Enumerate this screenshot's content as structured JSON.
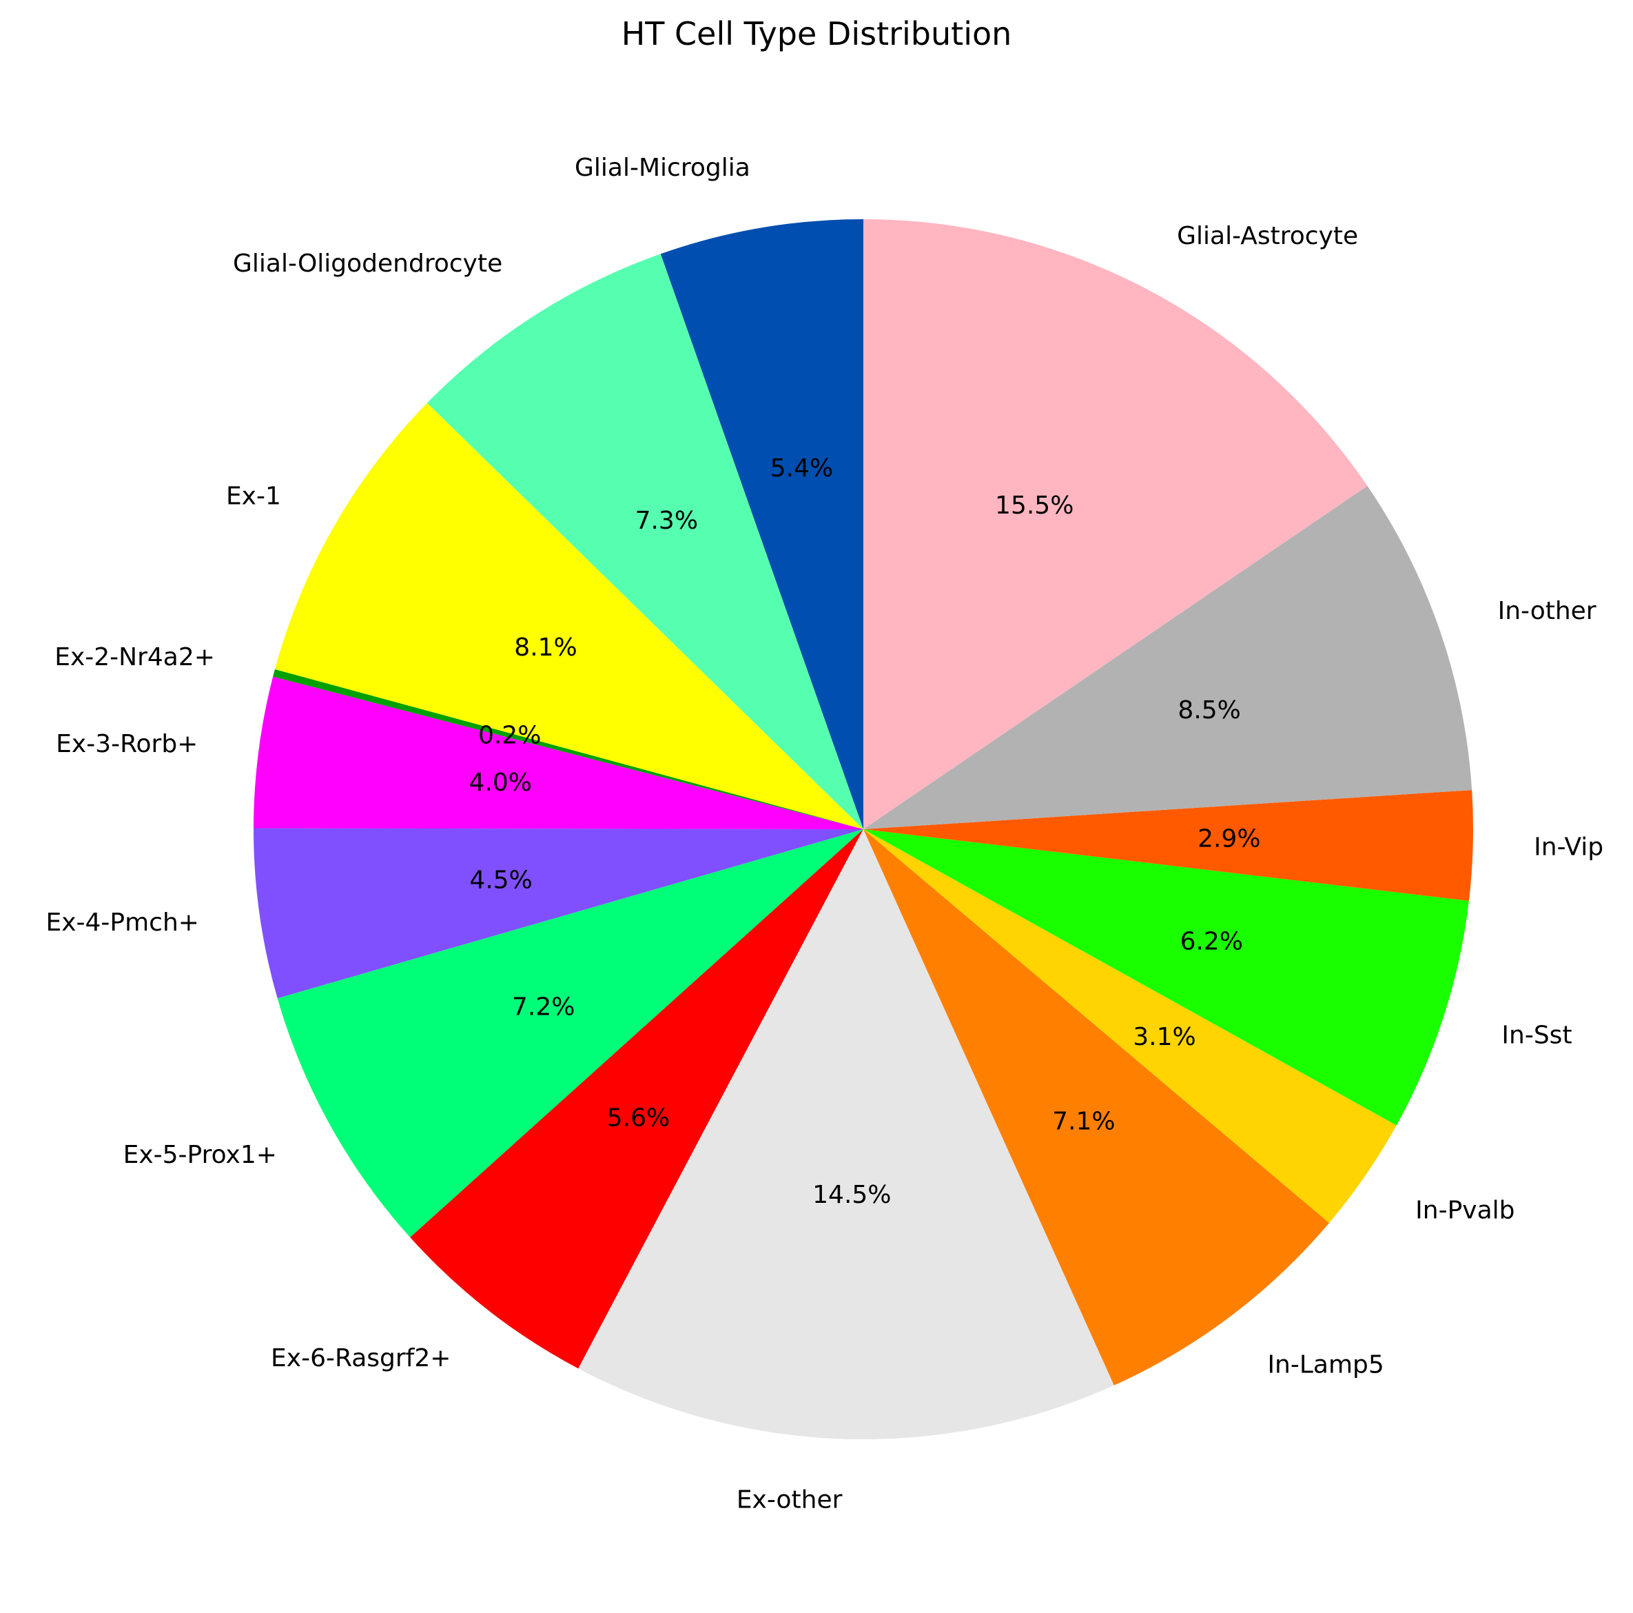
{
  "chart_data": {
    "type": "pie",
    "title": "HT Cell Type Distribution",
    "start_angle_deg": 90,
    "direction": "counterclockwise",
    "slices": [
      {
        "label": "Glial-Microglia",
        "value": 5.4,
        "pct_label": "5.4%",
        "color": "#004eaf"
      },
      {
        "label": "Glial-Oligodendrocyte",
        "value": 7.3,
        "pct_label": "7.3%",
        "color": "#56ffb0"
      },
      {
        "label": "Ex-1",
        "value": 8.1,
        "pct_label": "8.1%",
        "color": "#ffff00"
      },
      {
        "label": "Ex-2-Nr4a2+",
        "value": 0.2,
        "pct_label": "0.2%",
        "color": "#00a000"
      },
      {
        "label": "Ex-3-Rorb+",
        "value": 4.0,
        "pct_label": "4.0%",
        "color": "#ff00ff"
      },
      {
        "label": "Ex-4-Pmch+",
        "value": 4.5,
        "pct_label": "4.5%",
        "color": "#8050ff"
      },
      {
        "label": "Ex-5-Prox1+",
        "value": 7.2,
        "pct_label": "7.2%",
        "color": "#00ff78"
      },
      {
        "label": "Ex-6-Rasgrf2+",
        "value": 5.6,
        "pct_label": "5.6%",
        "color": "#ff0000"
      },
      {
        "label": "Ex-other",
        "value": 14.5,
        "pct_label": "14.5%",
        "color": "#e6e6e6"
      },
      {
        "label": "In-Lamp5",
        "value": 7.1,
        "pct_label": "7.1%",
        "color": "#ff8000"
      },
      {
        "label": "In-Pvalb",
        "value": 3.1,
        "pct_label": "3.1%",
        "color": "#ffd400"
      },
      {
        "label": "In-Sst",
        "value": 6.2,
        "pct_label": "6.2%",
        "color": "#1aff00"
      },
      {
        "label": "In-Vip",
        "value": 2.9,
        "pct_label": "2.9%",
        "color": "#ff5a00"
      },
      {
        "label": "In-other",
        "value": 8.5,
        "pct_label": "8.5%",
        "color": "#b2b2b2"
      },
      {
        "label": "Glial-Astrocyte",
        "value": 15.5,
        "pct_label": "15.5%",
        "color": "#ffb6c1"
      }
    ]
  }
}
